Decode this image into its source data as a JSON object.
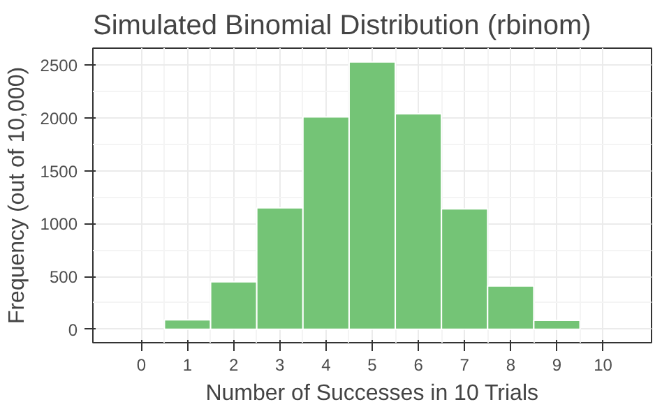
{
  "chart_data": {
    "type": "histogram",
    "title": "Simulated Binomial Distribution (rbinom)",
    "xlabel": "Number of Successes in 10 Trials",
    "ylabel": "Frequency (out of 10,000)",
    "bins": [
      0.5,
      1.5,
      2.5,
      3.5,
      4.5,
      5.5,
      6.5,
      7.5,
      8.5,
      9.5
    ],
    "values": [
      90,
      450,
      1150,
      2010,
      2530,
      2040,
      1140,
      410,
      85
    ],
    "color": "#74c476",
    "xlim": [
      -1.05,
      11.05
    ],
    "xticks": [
      0,
      1,
      2,
      3,
      4,
      5,
      6,
      7,
      8,
      9,
      10
    ],
    "ylim": [
      -127,
      2660
    ],
    "yticks": [
      0,
      500,
      1000,
      1500,
      2000,
      2500
    ],
    "grid": true
  }
}
